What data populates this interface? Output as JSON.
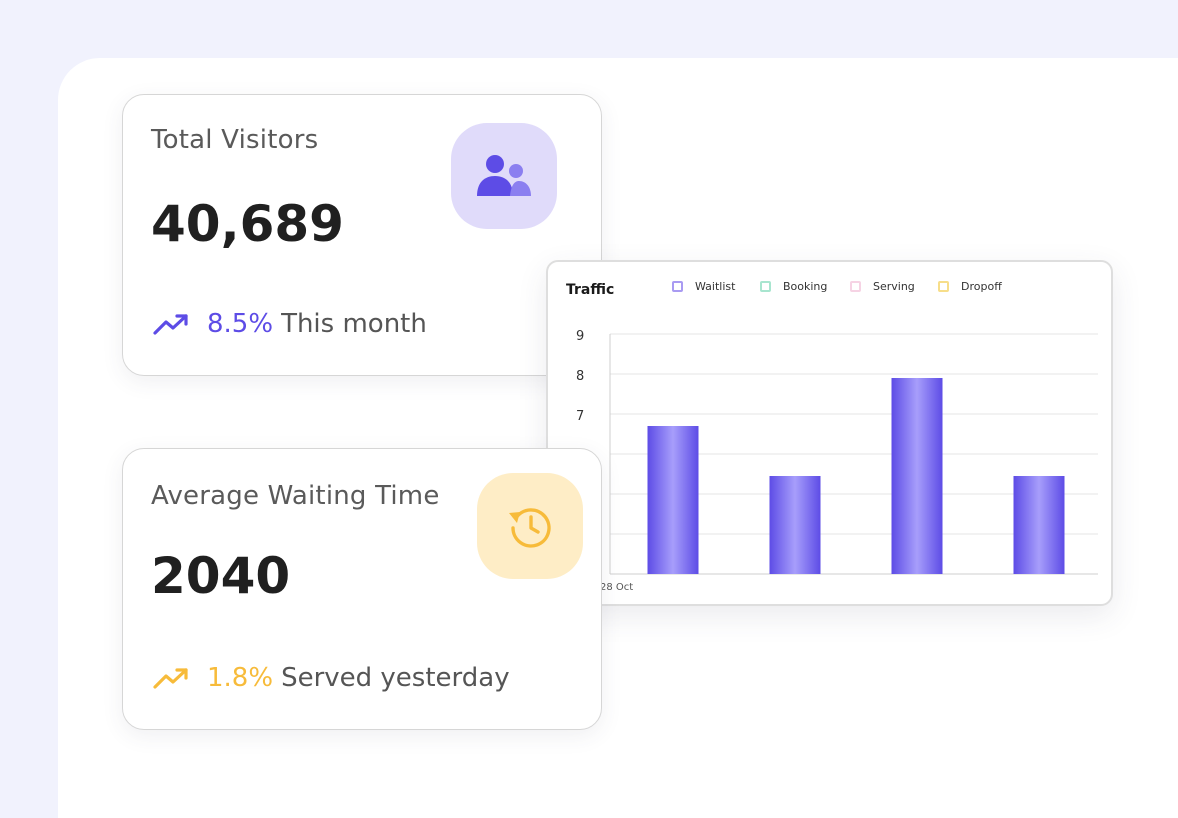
{
  "cards": {
    "visitors": {
      "title": "Total Visitors",
      "value": "40,689",
      "trend_percent": "8.5%",
      "trend_text": "This month",
      "icon": "users-icon",
      "accent": "#5D4CE6"
    },
    "waiting": {
      "title": "Average Waiting Time",
      "value": "2040",
      "trend_percent": "1.8%",
      "trend_text": "Served yesterday",
      "icon": "history-clock-icon",
      "accent": "#F7BB3A"
    }
  },
  "chart_data": {
    "type": "bar",
    "title": "Traffic",
    "legend": [
      "Waitlist",
      "Booking",
      "Serving",
      "Dropoff"
    ],
    "legend_colors": [
      "#A99BF2",
      "#A8E5CF",
      "#F6D3E4",
      "#F7DE8A"
    ],
    "legend_placement": "top",
    "y_ticks": [
      "9",
      "8",
      "7"
    ],
    "y_scale": [
      3,
      9
    ],
    "x_tick_labels": [
      "28 Oct"
    ],
    "values": [
      6.7,
      5.45,
      7.9,
      5.45
    ],
    "bar_color": "#6C5CEB",
    "grid": true
  }
}
